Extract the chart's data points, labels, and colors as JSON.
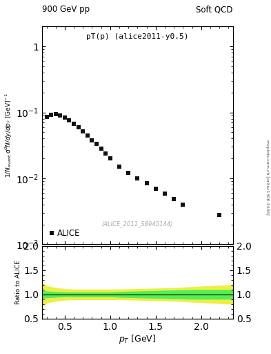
{
  "title_left": "900 GeV pp",
  "title_right": "Soft QCD",
  "plot_title": "pT(p) (alice2011-y0.5)",
  "watermark": "(ALICE_2011_S8945144)",
  "right_label": "mcplots.cern.ch [arXiv:1306.3436]",
  "ylabel_ratio": "Ratio to ALICE",
  "xlim": [
    0.25,
    2.35
  ],
  "ylim_main": [
    0.001,
    2.0
  ],
  "ylim_ratio": [
    0.5,
    2.0
  ],
  "data_x": [
    0.3,
    0.35,
    0.4,
    0.45,
    0.5,
    0.55,
    0.6,
    0.65,
    0.7,
    0.75,
    0.8,
    0.85,
    0.9,
    0.95,
    1.0,
    1.1,
    1.2,
    1.3,
    1.4,
    1.5,
    1.6,
    1.7,
    1.8,
    2.2
  ],
  "data_y": [
    0.085,
    0.093,
    0.095,
    0.09,
    0.083,
    0.075,
    0.067,
    0.06,
    0.052,
    0.045,
    0.038,
    0.033,
    0.028,
    0.024,
    0.02,
    0.015,
    0.012,
    0.01,
    0.0085,
    0.007,
    0.0058,
    0.0048,
    0.004,
    0.0028
  ],
  "marker_color": "#111111",
  "marker_size": 4.5,
  "legend_label": "ALICE",
  "band_x": [
    0.25,
    0.28,
    0.3,
    0.35,
    0.4,
    0.45,
    0.5,
    0.55,
    0.6,
    0.65,
    0.7,
    0.75,
    0.8,
    0.85,
    0.9,
    0.95,
    1.0,
    1.05,
    1.1,
    1.2,
    1.3,
    1.4,
    1.5,
    1.6,
    1.7,
    1.8,
    1.9,
    2.0,
    2.1,
    2.2,
    2.3,
    2.35
  ],
  "green_upper": [
    1.09,
    1.08,
    1.07,
    1.065,
    1.06,
    1.055,
    1.05,
    1.05,
    1.05,
    1.05,
    1.05,
    1.05,
    1.05,
    1.05,
    1.05,
    1.05,
    1.05,
    1.055,
    1.06,
    1.065,
    1.07,
    1.075,
    1.08,
    1.085,
    1.09,
    1.095,
    1.1,
    1.1,
    1.1,
    1.1,
    1.1,
    1.1
  ],
  "green_lower": [
    0.91,
    0.92,
    0.93,
    0.935,
    0.94,
    0.945,
    0.95,
    0.95,
    0.95,
    0.95,
    0.95,
    0.95,
    0.95,
    0.95,
    0.95,
    0.95,
    0.95,
    0.945,
    0.94,
    0.935,
    0.93,
    0.925,
    0.92,
    0.915,
    0.91,
    0.905,
    0.9,
    0.9,
    0.9,
    0.9,
    0.9,
    0.9
  ],
  "yellow_upper": [
    1.25,
    1.22,
    1.18,
    1.16,
    1.14,
    1.13,
    1.12,
    1.115,
    1.11,
    1.11,
    1.11,
    1.11,
    1.11,
    1.11,
    1.11,
    1.11,
    1.11,
    1.11,
    1.11,
    1.115,
    1.12,
    1.125,
    1.13,
    1.135,
    1.14,
    1.15,
    1.16,
    1.17,
    1.18,
    1.19,
    1.2,
    1.2
  ],
  "yellow_lower": [
    0.75,
    0.78,
    0.82,
    0.84,
    0.86,
    0.87,
    0.88,
    0.885,
    0.89,
    0.89,
    0.89,
    0.89,
    0.89,
    0.89,
    0.89,
    0.89,
    0.89,
    0.89,
    0.89,
    0.885,
    0.88,
    0.875,
    0.87,
    0.865,
    0.86,
    0.85,
    0.84,
    0.83,
    0.82,
    0.81,
    0.8,
    0.8
  ],
  "green_color": "#55ee55",
  "yellow_color": "#eeee44",
  "bg_color": "#ffffff"
}
